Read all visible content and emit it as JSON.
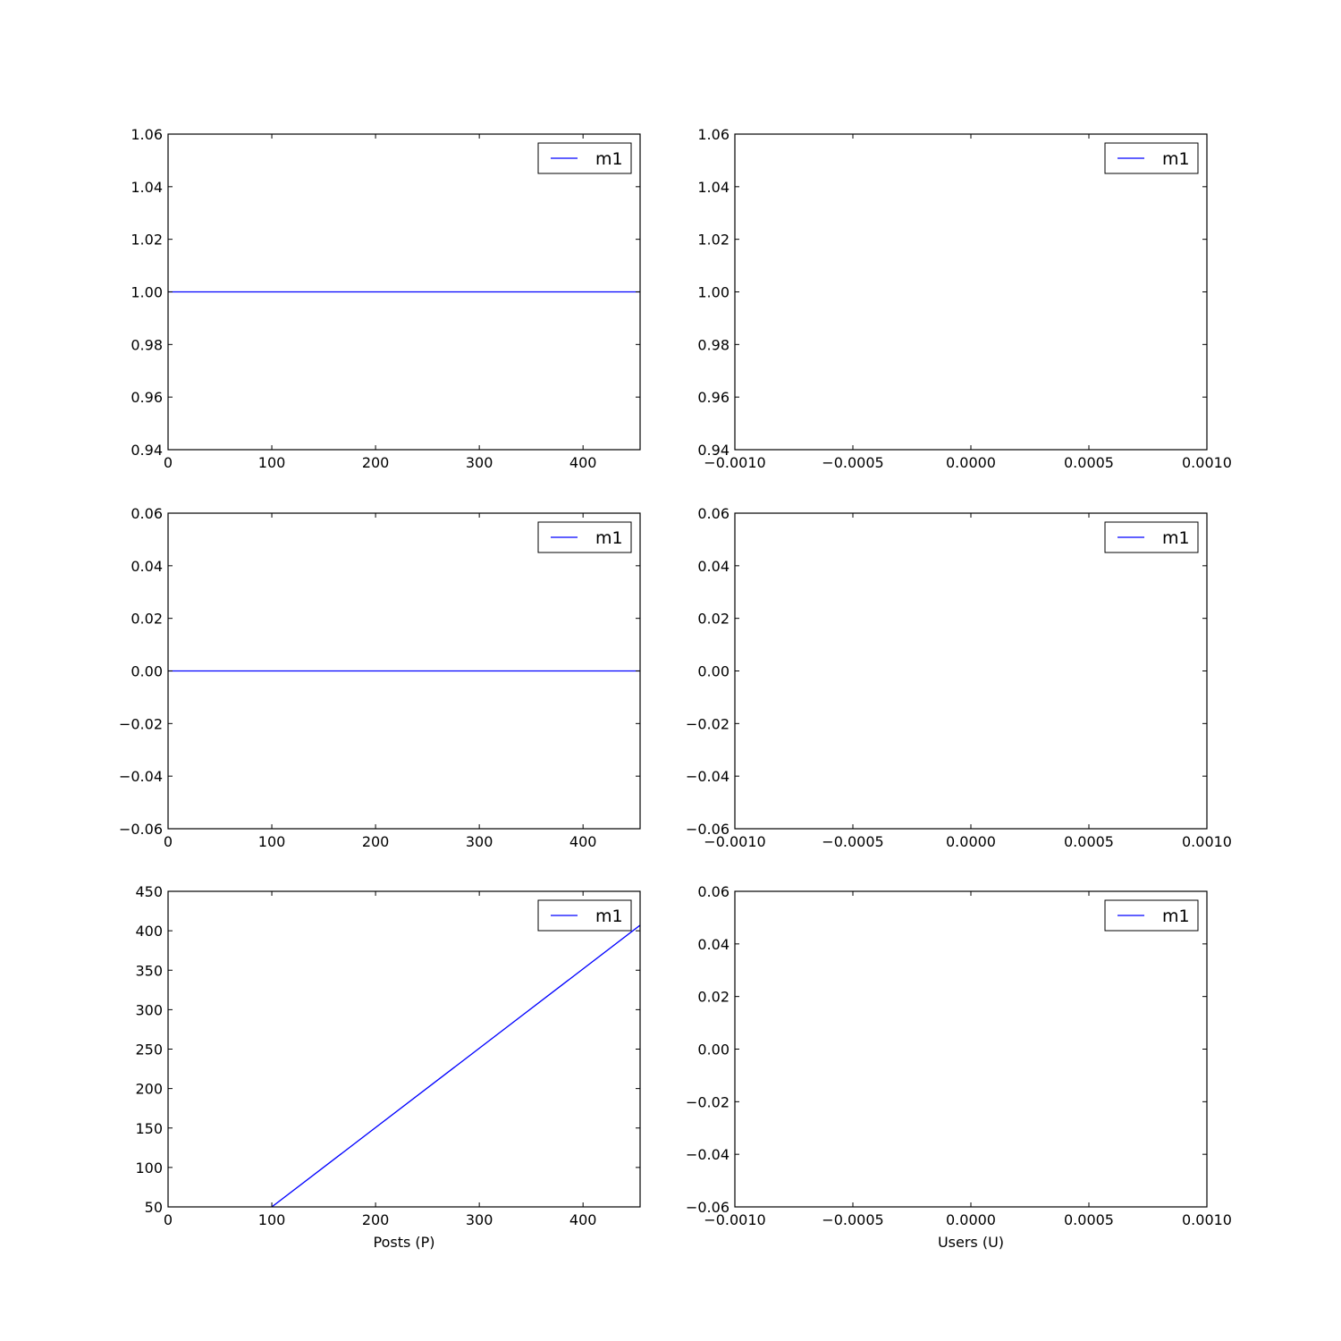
{
  "chart_data": [
    {
      "type": "line",
      "xlabel": "",
      "ylabel": "",
      "xlim": [
        0,
        455
      ],
      "ylim": [
        0.94,
        1.06
      ],
      "xticks": [
        "0",
        "100",
        "200",
        "300",
        "400"
      ],
      "yticks": [
        "0.94",
        "0.96",
        "0.98",
        "1.00",
        "1.02",
        "1.04",
        "1.06"
      ],
      "legend": "top-right",
      "series": [
        {
          "name": "m1",
          "color": "#0000ff",
          "x": [
            0,
            455
          ],
          "y": [
            1.0,
            1.0
          ]
        }
      ]
    },
    {
      "type": "line",
      "xlabel": "",
      "ylabel": "",
      "xlim": [
        -0.001,
        0.001
      ],
      "ylim": [
        0.94,
        1.06
      ],
      "xticks": [
        "−0.0010",
        "−0.0005",
        "0.0000",
        "0.0005",
        "0.0010"
      ],
      "yticks": [
        "0.94",
        "0.96",
        "0.98",
        "1.00",
        "1.02",
        "1.04",
        "1.06"
      ],
      "legend": "top-right",
      "series": [
        {
          "name": "m1",
          "color": "#0000ff",
          "x": [],
          "y": []
        }
      ]
    },
    {
      "type": "line",
      "xlabel": "",
      "ylabel": "",
      "xlim": [
        0,
        455
      ],
      "ylim": [
        -0.06,
        0.06
      ],
      "xticks": [
        "0",
        "100",
        "200",
        "300",
        "400"
      ],
      "yticks": [
        "−0.06",
        "−0.04",
        "−0.02",
        "0.00",
        "0.02",
        "0.04",
        "0.06"
      ],
      "legend": "top-right",
      "series": [
        {
          "name": "m1",
          "color": "#0000ff",
          "x": [
            0,
            455
          ],
          "y": [
            0.0,
            0.0
          ]
        }
      ]
    },
    {
      "type": "line",
      "xlabel": "",
      "ylabel": "",
      "xlim": [
        -0.001,
        0.001
      ],
      "ylim": [
        -0.06,
        0.06
      ],
      "xticks": [
        "−0.0010",
        "−0.0005",
        "0.0000",
        "0.0005",
        "0.0010"
      ],
      "yticks": [
        "−0.06",
        "−0.04",
        "−0.02",
        "0.00",
        "0.02",
        "0.04",
        "0.06"
      ],
      "legend": "top-right",
      "series": [
        {
          "name": "m1",
          "color": "#0000ff",
          "x": [],
          "y": []
        }
      ]
    },
    {
      "type": "line",
      "xlabel": "Posts (P)",
      "ylabel": "",
      "xlim": [
        0,
        455
      ],
      "ylim": [
        50,
        450
      ],
      "xticks": [
        "0",
        "100",
        "200",
        "300",
        "400"
      ],
      "yticks": [
        "50",
        "100",
        "150",
        "200",
        "250",
        "300",
        "350",
        "400",
        "450"
      ],
      "legend": "top-right",
      "series": [
        {
          "name": "m1",
          "color": "#0000ff",
          "x": [
            100,
            455
          ],
          "y": [
            50,
            407
          ]
        }
      ]
    },
    {
      "type": "line",
      "xlabel": "Users (U)",
      "ylabel": "",
      "xlim": [
        -0.001,
        0.001
      ],
      "ylim": [
        -0.06,
        0.06
      ],
      "xticks": [
        "−0.0010",
        "−0.0005",
        "0.0000",
        "0.0005",
        "0.0010"
      ],
      "yticks": [
        "−0.06",
        "−0.04",
        "−0.02",
        "0.00",
        "0.02",
        "0.04",
        "0.06"
      ],
      "legend": "top-right",
      "series": [
        {
          "name": "m1",
          "color": "#0000ff",
          "x": [],
          "y": []
        }
      ]
    }
  ]
}
